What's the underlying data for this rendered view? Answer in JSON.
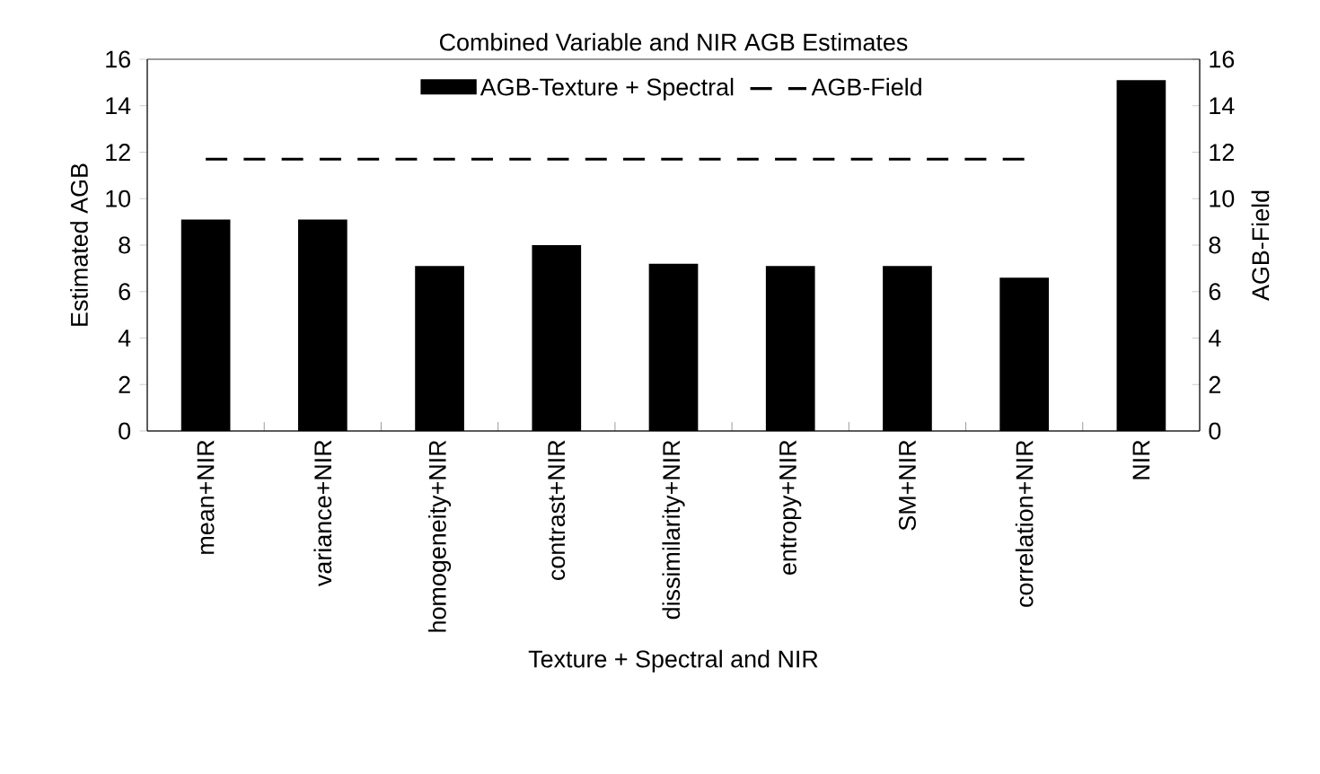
{
  "chart_data": {
    "type": "bar",
    "title": "Combined Variable and NIR AGB Estimates",
    "xlabel": "Texture + Spectral and NIR",
    "ylabel": "Estimated AGB",
    "y2label": "AGB-Field",
    "categories": [
      "mean+NIR",
      "variance+NIR",
      "homogeneity+NIR",
      "contrast+NIR",
      "dissimilarity+NIR",
      "entropy+NIR",
      "SM+NIR",
      "correlation+NIR",
      "NIR"
    ],
    "series": [
      {
        "name": "AGB-Texture + Spectral",
        "color": "#000000",
        "values": [
          9.1,
          9.1,
          7.1,
          8.0,
          7.2,
          7.1,
          7.1,
          6.6,
          15.1
        ]
      },
      {
        "name": "AGB-Field",
        "type": "line",
        "axis": "y2",
        "line_style": "dashed",
        "color": "#000000",
        "values": [
          11.7,
          11.7,
          11.7,
          11.7,
          11.7,
          11.7,
          11.7,
          11.7,
          null
        ]
      }
    ],
    "ylim": [
      0,
      16
    ],
    "yticks": [
      0,
      2,
      4,
      6,
      8,
      10,
      12,
      14,
      16
    ],
    "y2lim": [
      0,
      16
    ],
    "y2ticks": [
      0,
      2,
      4,
      6,
      8,
      10,
      12,
      14,
      16
    ],
    "legend": "top",
    "grid": false
  }
}
